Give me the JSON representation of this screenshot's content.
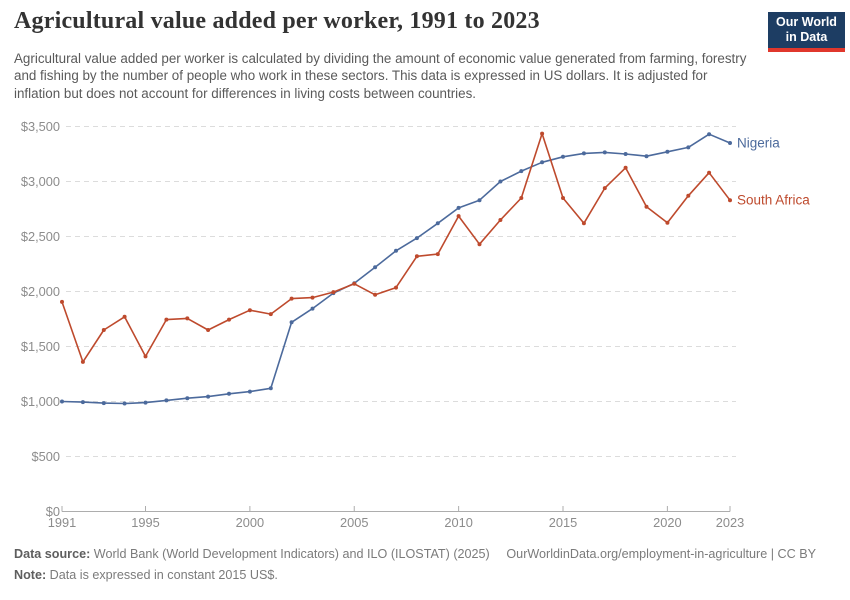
{
  "header": {
    "title": "Agricultural value added per worker, 1991 to 2023",
    "subtitle": "Agricultural value added per worker is calculated by dividing the amount of economic value generated from farming, forestry and fishing by the number of people who work in these sectors. This data is expressed in US dollars. It is adjusted for inflation but does not account for differences in living costs between countries.",
    "logo": {
      "line1": "Our World",
      "line2": "in Data",
      "bg_color": "#1d3d63",
      "bar_color": "#e0372c"
    }
  },
  "chart_data": {
    "type": "line",
    "title": "Agricultural value added per worker, 1991 to 2023",
    "xlabel": "",
    "ylabel": "",
    "unit": "constant 2015 US$",
    "ylim": [
      0,
      3500
    ],
    "ytick_values": [
      0,
      500,
      1000,
      1500,
      2000,
      2500,
      3000,
      3500
    ],
    "ytick_labels": [
      "$0",
      "$500",
      "$1,000",
      "$1,500",
      "$2,000",
      "$2,500",
      "$3,000",
      "$3,500"
    ],
    "xticks": [
      1991,
      1995,
      2000,
      2005,
      2010,
      2015,
      2020,
      2023
    ],
    "grid": "horizontal-dashed",
    "legend_position": "right-of-line-end",
    "axis_color": "#adadad",
    "grid_color": "#dcdcdc",
    "tick_label_color": "#8c8c8c",
    "x": [
      1991,
      1992,
      1993,
      1994,
      1995,
      1996,
      1997,
      1998,
      1999,
      2000,
      2001,
      2002,
      2003,
      2004,
      2005,
      2006,
      2007,
      2008,
      2009,
      2010,
      2011,
      2012,
      2013,
      2014,
      2015,
      2016,
      2017,
      2018,
      2019,
      2020,
      2021,
      2022,
      2023
    ],
    "series": [
      {
        "name": "Nigeria",
        "color": "#4C6A9C",
        "values": [
          1000,
          995,
          985,
          982,
          990,
          1010,
          1030,
          1045,
          1070,
          1090,
          1120,
          1720,
          1845,
          1985,
          2075,
          2220,
          2370,
          2485,
          2620,
          2760,
          2830,
          3000,
          3095,
          3175,
          3225,
          3255,
          3265,
          3250,
          3230,
          3270,
          3310,
          3430,
          3350
        ]
      },
      {
        "name": "South Africa",
        "color": "#BE4A2D",
        "values": [
          1905,
          1360,
          1650,
          1770,
          1410,
          1745,
          1755,
          1650,
          1745,
          1830,
          1795,
          1935,
          1945,
          1995,
          2070,
          1970,
          2035,
          2320,
          2340,
          2685,
          2430,
          2650,
          2850,
          3435,
          2850,
          2620,
          2940,
          3125,
          2770,
          2625,
          2870,
          3080,
          2830
        ]
      }
    ]
  },
  "footer": {
    "source_label": "Data source:",
    "source_text": " World Bank (World Development Indicators) and ILO (ILOSTAT) (2025)",
    "link_text": "OurWorldinData.org/employment-in-agriculture | CC BY",
    "note_label": "Note:",
    "note_text": " Data is expressed in constant 2015 US$."
  }
}
